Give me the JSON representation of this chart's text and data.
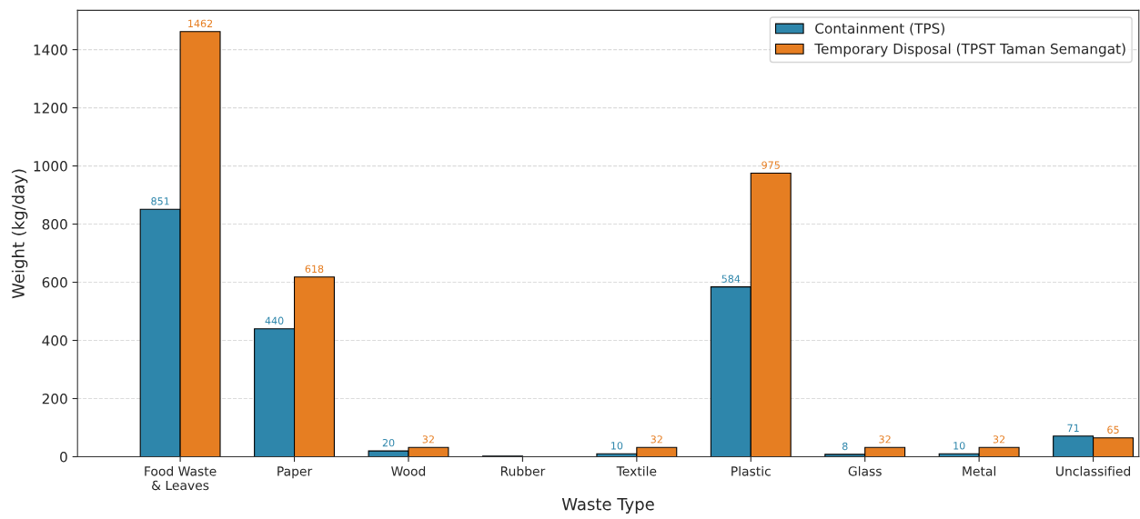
{
  "chart_data": {
    "type": "bar",
    "xlabel": "Waste Type",
    "ylabel": "Weight (kg/day)",
    "categories": [
      "Food Waste\n& Leaves",
      "Paper",
      "Wood",
      "Rubber",
      "Textile",
      "Plastic",
      "Glass",
      "Metal",
      "Unclassified"
    ],
    "series": [
      {
        "name": "Containment (TPS)",
        "color": "#2e86ab",
        "values": [
          851,
          440,
          20,
          2,
          10,
          584,
          8,
          10,
          71
        ],
        "value_labels": [
          "851",
          "440",
          "20",
          null,
          "10",
          "584",
          "8",
          "10",
          "71"
        ]
      },
      {
        "name": "Temporary Disposal (TPST Taman Semangat)",
        "color": "#e67e22",
        "values": [
          1462,
          618,
          32,
          null,
          32,
          975,
          32,
          32,
          65
        ],
        "value_labels": [
          "1462",
          "618",
          "32",
          null,
          "32",
          "975",
          "32",
          "32",
          "65"
        ]
      }
    ],
    "ylim": [
      0,
      1535
    ],
    "yticks": [
      0,
      200,
      400,
      600,
      800,
      1000,
      1200,
      1400
    ],
    "grid": "y",
    "legend": "top right"
  }
}
